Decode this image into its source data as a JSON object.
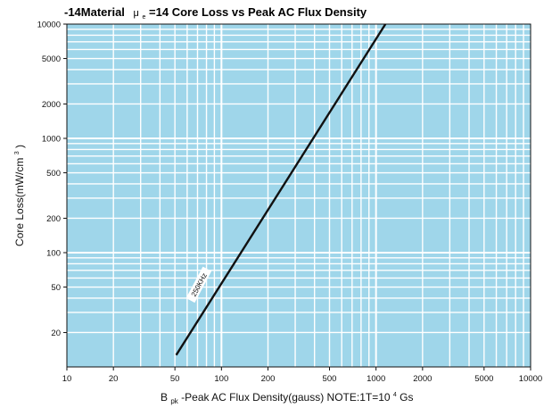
{
  "chart_data": {
    "type": "line",
    "title_prefix": "-14Material",
    "title_mu": "μ",
    "title_mu_sub": "e",
    "title_suffix": "=14 Core Loss vs Peak AC Flux Density",
    "xlabel_prefix": "B",
    "xlabel_sub": "pk",
    "xlabel_main": "-Peak AC Flux Density(gauss)  NOTE:1T=10",
    "xlabel_sup": "4",
    "xlabel_end": "Gs",
    "ylabel_main": "Core Loss(mW/cm",
    "ylabel_sup": "3",
    "ylabel_end": ")",
    "x_scale": "log",
    "y_scale": "log",
    "xlim": [
      10,
      10000
    ],
    "ylim": [
      10,
      10000
    ],
    "x_ticks": [
      10,
      20,
      50,
      100,
      200,
      500,
      1000,
      2000,
      5000,
      10000
    ],
    "x_tick_labels": [
      "10",
      "20",
      "50",
      "100",
      "200",
      "500",
      "1000",
      "2000",
      "5000",
      "10000"
    ],
    "y_ticks": [
      20,
      50,
      100,
      200,
      500,
      1000,
      2000,
      5000,
      10000
    ],
    "y_tick_labels": [
      "20",
      "50",
      "100",
      "200",
      "500",
      "1000",
      "2000",
      "5000",
      "10000"
    ],
    "grid": true,
    "background_color": "#9fd6ea",
    "grid_color": "#ffffff",
    "series": [
      {
        "name": "250KHz",
        "color": "#111111",
        "points": [
          [
            51,
            12.7
          ],
          [
            1150,
            10000
          ]
        ]
      }
    ],
    "annotations": [
      {
        "text": "250KHz",
        "x": 70,
        "y": 50,
        "rotation": -62
      }
    ]
  }
}
